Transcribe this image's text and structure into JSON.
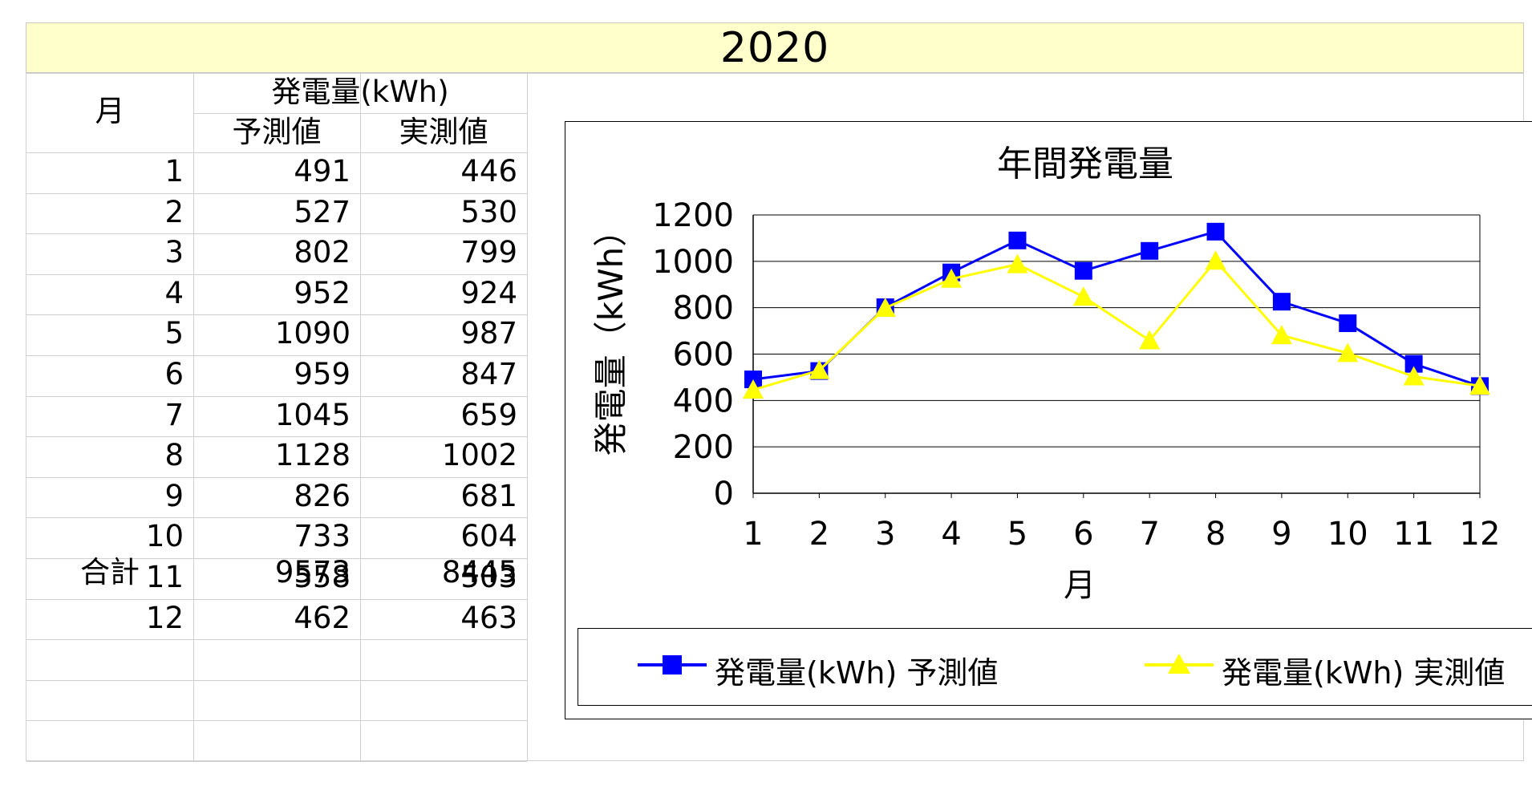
{
  "banner": {
    "year": "2020"
  },
  "table": {
    "month_header": "月",
    "group_header": "発電量(kWh)",
    "col_forecast": "予測値",
    "col_actual": "実測値",
    "rows": [
      {
        "month": "1",
        "forecast": "491",
        "actual": "446"
      },
      {
        "month": "2",
        "forecast": "527",
        "actual": "530"
      },
      {
        "month": "3",
        "forecast": "802",
        "actual": "799"
      },
      {
        "month": "4",
        "forecast": "952",
        "actual": "924"
      },
      {
        "month": "5",
        "forecast": "1090",
        "actual": "987"
      },
      {
        "month": "6",
        "forecast": "959",
        "actual": "847"
      },
      {
        "month": "7",
        "forecast": "1045",
        "actual": "659"
      },
      {
        "month": "8",
        "forecast": "1128",
        "actual": "1002"
      },
      {
        "month": "9",
        "forecast": "826",
        "actual": "681"
      },
      {
        "month": "10",
        "forecast": "733",
        "actual": "604"
      },
      {
        "month": "11",
        "forecast": "558",
        "actual": "503"
      },
      {
        "month": "12",
        "forecast": "462",
        "actual": "463"
      }
    ],
    "total": {
      "label": "合計",
      "forecast": "9573",
      "actual": "8445"
    }
  },
  "chart_data": {
    "type": "line",
    "title": "年間発電量",
    "xlabel": "月",
    "ylabel": "発電量（kWh）",
    "x": [
      "1",
      "2",
      "3",
      "4",
      "5",
      "6",
      "7",
      "8",
      "9",
      "10",
      "11",
      "12"
    ],
    "ylim": [
      0,
      1200
    ],
    "yticks": [
      0,
      200,
      400,
      600,
      800,
      1000,
      1200
    ],
    "grid": true,
    "legend_position": "bottom",
    "series": [
      {
        "name": "発電量(kWh) 予測値",
        "color": "#0000ff",
        "marker": "square",
        "values": [
          491,
          527,
          802,
          952,
          1090,
          959,
          1045,
          1128,
          826,
          733,
          558,
          462
        ]
      },
      {
        "name": "発電量(kWh) 実測値",
        "color": "#ffff00",
        "marker": "triangle",
        "values": [
          446,
          530,
          799,
          924,
          987,
          847,
          659,
          1002,
          681,
          604,
          503,
          463
        ]
      }
    ]
  }
}
